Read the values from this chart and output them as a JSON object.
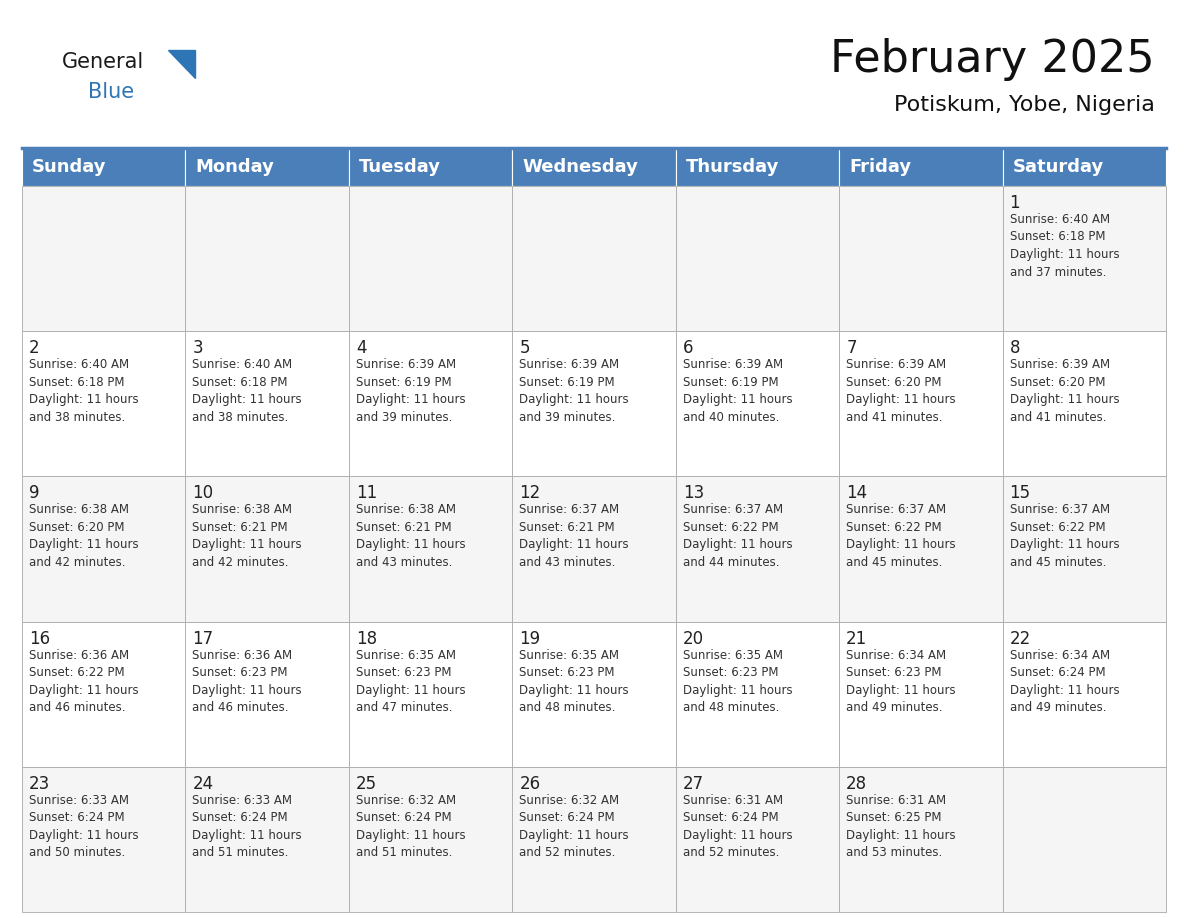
{
  "title": "February 2025",
  "subtitle": "Potiskum, Yobe, Nigeria",
  "header_color": "#4a7fba",
  "header_text_color": "#FFFFFF",
  "background_color": "#FFFFFF",
  "grid_line_color": "#aaaaaa",
  "cell_bg_even": "#f5f5f5",
  "cell_bg_odd": "#ffffff",
  "day_names": [
    "Sunday",
    "Monday",
    "Tuesday",
    "Wednesday",
    "Thursday",
    "Friday",
    "Saturday"
  ],
  "title_fontsize": 32,
  "subtitle_fontsize": 16,
  "header_fontsize": 13,
  "day_num_fontsize": 12,
  "info_fontsize": 8.5,
  "logo_general_color": "#1a1a1a",
  "logo_blue_color": "#2E75B6",
  "logo_triangle_color": "#2E75B6",
  "weeks": [
    [
      {
        "day": null,
        "info": null
      },
      {
        "day": null,
        "info": null
      },
      {
        "day": null,
        "info": null
      },
      {
        "day": null,
        "info": null
      },
      {
        "day": null,
        "info": null
      },
      {
        "day": null,
        "info": null
      },
      {
        "day": 1,
        "info": "Sunrise: 6:40 AM\nSunset: 6:18 PM\nDaylight: 11 hours\nand 37 minutes."
      }
    ],
    [
      {
        "day": 2,
        "info": "Sunrise: 6:40 AM\nSunset: 6:18 PM\nDaylight: 11 hours\nand 38 minutes."
      },
      {
        "day": 3,
        "info": "Sunrise: 6:40 AM\nSunset: 6:18 PM\nDaylight: 11 hours\nand 38 minutes."
      },
      {
        "day": 4,
        "info": "Sunrise: 6:39 AM\nSunset: 6:19 PM\nDaylight: 11 hours\nand 39 minutes."
      },
      {
        "day": 5,
        "info": "Sunrise: 6:39 AM\nSunset: 6:19 PM\nDaylight: 11 hours\nand 39 minutes."
      },
      {
        "day": 6,
        "info": "Sunrise: 6:39 AM\nSunset: 6:19 PM\nDaylight: 11 hours\nand 40 minutes."
      },
      {
        "day": 7,
        "info": "Sunrise: 6:39 AM\nSunset: 6:20 PM\nDaylight: 11 hours\nand 41 minutes."
      },
      {
        "day": 8,
        "info": "Sunrise: 6:39 AM\nSunset: 6:20 PM\nDaylight: 11 hours\nand 41 minutes."
      }
    ],
    [
      {
        "day": 9,
        "info": "Sunrise: 6:38 AM\nSunset: 6:20 PM\nDaylight: 11 hours\nand 42 minutes."
      },
      {
        "day": 10,
        "info": "Sunrise: 6:38 AM\nSunset: 6:21 PM\nDaylight: 11 hours\nand 42 minutes."
      },
      {
        "day": 11,
        "info": "Sunrise: 6:38 AM\nSunset: 6:21 PM\nDaylight: 11 hours\nand 43 minutes."
      },
      {
        "day": 12,
        "info": "Sunrise: 6:37 AM\nSunset: 6:21 PM\nDaylight: 11 hours\nand 43 minutes."
      },
      {
        "day": 13,
        "info": "Sunrise: 6:37 AM\nSunset: 6:22 PM\nDaylight: 11 hours\nand 44 minutes."
      },
      {
        "day": 14,
        "info": "Sunrise: 6:37 AM\nSunset: 6:22 PM\nDaylight: 11 hours\nand 45 minutes."
      },
      {
        "day": 15,
        "info": "Sunrise: 6:37 AM\nSunset: 6:22 PM\nDaylight: 11 hours\nand 45 minutes."
      }
    ],
    [
      {
        "day": 16,
        "info": "Sunrise: 6:36 AM\nSunset: 6:22 PM\nDaylight: 11 hours\nand 46 minutes."
      },
      {
        "day": 17,
        "info": "Sunrise: 6:36 AM\nSunset: 6:23 PM\nDaylight: 11 hours\nand 46 minutes."
      },
      {
        "day": 18,
        "info": "Sunrise: 6:35 AM\nSunset: 6:23 PM\nDaylight: 11 hours\nand 47 minutes."
      },
      {
        "day": 19,
        "info": "Sunrise: 6:35 AM\nSunset: 6:23 PM\nDaylight: 11 hours\nand 48 minutes."
      },
      {
        "day": 20,
        "info": "Sunrise: 6:35 AM\nSunset: 6:23 PM\nDaylight: 11 hours\nand 48 minutes."
      },
      {
        "day": 21,
        "info": "Sunrise: 6:34 AM\nSunset: 6:23 PM\nDaylight: 11 hours\nand 49 minutes."
      },
      {
        "day": 22,
        "info": "Sunrise: 6:34 AM\nSunset: 6:24 PM\nDaylight: 11 hours\nand 49 minutes."
      }
    ],
    [
      {
        "day": 23,
        "info": "Sunrise: 6:33 AM\nSunset: 6:24 PM\nDaylight: 11 hours\nand 50 minutes."
      },
      {
        "day": 24,
        "info": "Sunrise: 6:33 AM\nSunset: 6:24 PM\nDaylight: 11 hours\nand 51 minutes."
      },
      {
        "day": 25,
        "info": "Sunrise: 6:32 AM\nSunset: 6:24 PM\nDaylight: 11 hours\nand 51 minutes."
      },
      {
        "day": 26,
        "info": "Sunrise: 6:32 AM\nSunset: 6:24 PM\nDaylight: 11 hours\nand 52 minutes."
      },
      {
        "day": 27,
        "info": "Sunrise: 6:31 AM\nSunset: 6:24 PM\nDaylight: 11 hours\nand 52 minutes."
      },
      {
        "day": 28,
        "info": "Sunrise: 6:31 AM\nSunset: 6:25 PM\nDaylight: 11 hours\nand 53 minutes."
      },
      {
        "day": null,
        "info": null
      }
    ]
  ]
}
